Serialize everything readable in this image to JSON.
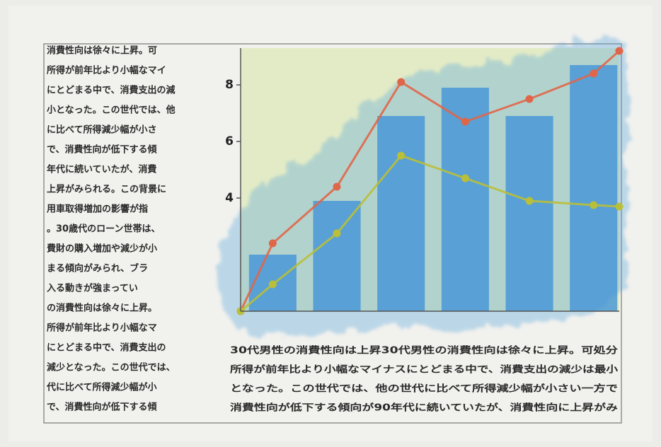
{
  "document": {
    "left_column": [
      "消費性向は徐々に上昇。可",
      "所得が前年比より小幅なマイ",
      "にとどまる中で、消費支出の減",
      "小となった。この世代では、他",
      "に比べて所得減少幅が小さ",
      "で、消費性向が低下する傾",
      "年代に続いていたが、消費",
      "上昇がみられる。この背景に",
      "用車取得増加の影響が指",
      "。30歳代のローン世帯は、",
      "費財の購入増加や減少が小",
      "まる傾向がみられ、ブラ",
      "入る動きが強まってい",
      "の消費性向は徐々に上昇。",
      "所得が前年比より小幅なマ",
      "にとどまる中で、消費支出の",
      "減少となった。この世代では、",
      "代に比べて所得減少幅が小",
      "で、消費性向が低下する傾"
    ],
    "bottom_text": [
      "30代男性の消費性向は上昇30代男性の消費性向は徐々に上昇。可処分",
      "所得が前年比より小幅なマイナスにとどまる中で、消費支出の減少は最小",
      "となった。この世代では、他の世代に比べて所得減少幅が小さい一方で",
      "消費性向が低下する傾向が90年代に続いていたが、消費性向に上昇がみ"
    ]
  },
  "chart_data": {
    "type": "combo",
    "xlim": [
      0,
      5.9
    ],
    "ylim": [
      0,
      9.3
    ],
    "yticks": [
      4,
      6,
      8
    ],
    "series": [
      {
        "type": "bar",
        "color": "#3a8fd8",
        "x": [
          0.5,
          1.5,
          2.5,
          3.5,
          4.5,
          5.5
        ],
        "values": [
          2,
          3.9,
          6.9,
          7.9,
          6.9,
          8.7
        ]
      },
      {
        "type": "line",
        "color": "#e0664a",
        "x": [
          0,
          0.5,
          1.5,
          2.5,
          3.5,
          4.5,
          5.5,
          5.9
        ],
        "values": [
          0,
          2.4,
          4.4,
          8.1,
          6.7,
          7.5,
          8.4,
          9.2
        ]
      },
      {
        "type": "line",
        "color": "#b9bf3a",
        "x": [
          0,
          0.5,
          1.5,
          2.5,
          3.5,
          4.5,
          5.5,
          5.9
        ],
        "values": [
          0,
          0.95,
          2.75,
          5.5,
          4.7,
          3.9,
          3.75,
          3.7
        ]
      }
    ]
  }
}
